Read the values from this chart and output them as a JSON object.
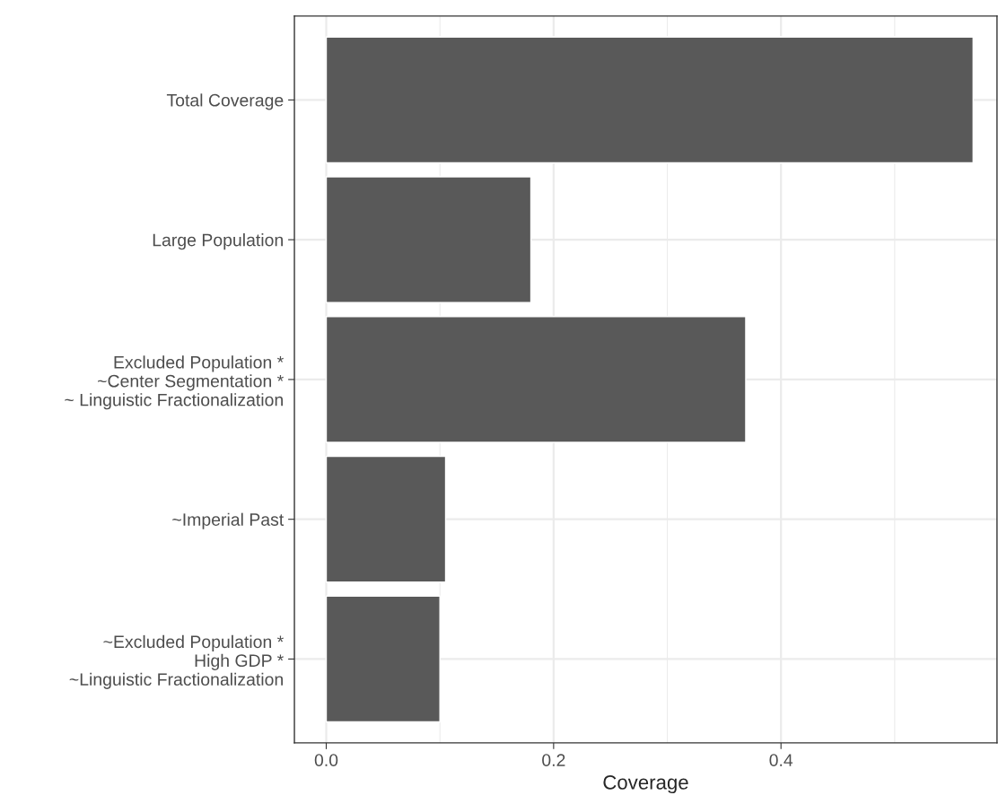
{
  "chart_data": {
    "type": "bar",
    "orientation": "horizontal",
    "xlabel": "Coverage",
    "categories": [
      "Total Coverage",
      "Large Population",
      "Excluded Population *\n~Center Segmentation *\n~ Linguistic Fractionalization",
      "~Imperial Past",
      "~Excluded Population *\nHigh GDP *\n~Linguistic Fractionalization"
    ],
    "values": [
      0.569,
      0.18,
      0.369,
      0.105,
      0.1
    ],
    "color": "#595959",
    "xlim": [
      -0.028,
      0.59
    ],
    "xticks": [
      {
        "value": 0.0,
        "label": "0.0"
      },
      {
        "value": 0.1,
        "label": null
      },
      {
        "value": 0.2,
        "label": "0.2"
      },
      {
        "value": 0.3,
        "label": null
      },
      {
        "value": 0.4,
        "label": "0.4"
      },
      {
        "value": 0.5,
        "label": null
      }
    ],
    "grid": true
  }
}
